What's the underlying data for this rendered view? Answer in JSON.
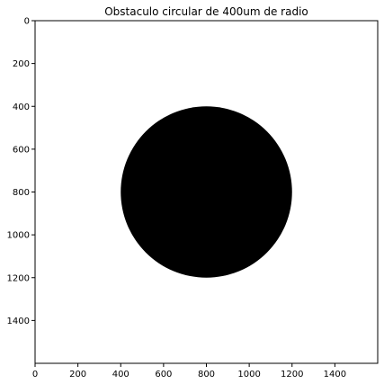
{
  "chart_data": {
    "type": "heatmap",
    "title": "Obstaculo circular de 400um de radio",
    "xlabel": "",
    "ylabel": "",
    "xlim": [
      0,
      1600
    ],
    "ylim": [
      1600,
      0
    ],
    "x_ticks": [
      0,
      200,
      400,
      600,
      800,
      1000,
      1200,
      1400
    ],
    "y_ticks": [
      0,
      200,
      400,
      600,
      800,
      1000,
      1200,
      1400
    ],
    "x_tick_labels": [
      "0",
      "200",
      "400",
      "600",
      "800",
      "1000",
      "1200",
      "1400"
    ],
    "y_tick_labels": [
      "0",
      "200",
      "400",
      "600",
      "800",
      "1000",
      "1200",
      "1400"
    ],
    "grid": false,
    "background_color": "#ffffff",
    "obstacle": {
      "shape": "circle",
      "center_x": 800,
      "center_y": 800,
      "radius": 400,
      "color": "#000000"
    }
  }
}
